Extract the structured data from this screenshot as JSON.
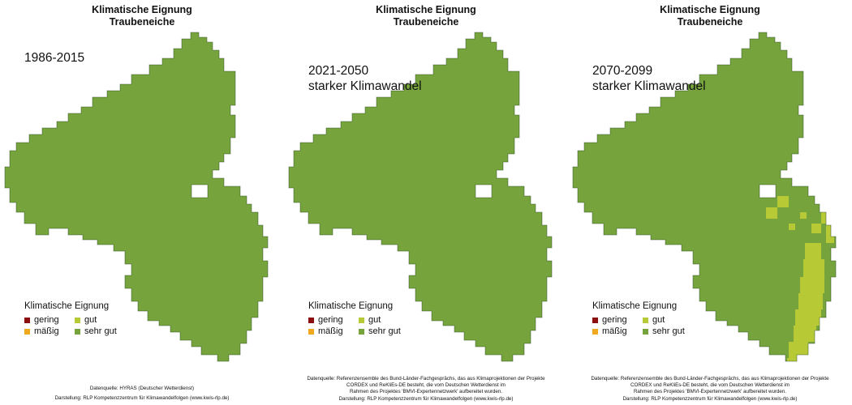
{
  "colors": {
    "sehr_gut": "#76a33c",
    "gut": "#b7c935",
    "maessig": "#f0a81e",
    "gering": "#8b0f0f",
    "outline": "#2f4f2a"
  },
  "panels": [
    {
      "title_line1": "Klimatische Eignung",
      "title_line2": "Traubeneiche",
      "period": "1986-2015",
      "legend": {
        "title": "Klimatische Eignung",
        "items": [
          {
            "label": "gering",
            "color": "#8b0f0f"
          },
          {
            "label": "gut",
            "color": "#b7c935"
          },
          {
            "label": "mäßig",
            "color": "#f0a81e"
          },
          {
            "label": "sehr gut",
            "color": "#76a33c"
          }
        ]
      },
      "source": "Datenquelle: HYRAS (Deutscher Wetterdienst)",
      "credit": "Darstellung: RLP Kompetenzzentrum für Klimawandelfolgen (www.kwis-rlp.de)"
    },
    {
      "title_line1": "Klimatische Eignung",
      "title_line2": "Traubeneiche",
      "period": "2021-2050\nstarker Klimawandel",
      "legend": {
        "title": "Klimatische Eignung",
        "items": [
          {
            "label": "gering",
            "color": "#8b0f0f"
          },
          {
            "label": "gut",
            "color": "#b7c935"
          },
          {
            "label": "mäßig",
            "color": "#f0a81e"
          },
          {
            "label": "sehr gut",
            "color": "#76a33c"
          }
        ]
      },
      "source": "Datenquelle: Referenzensemble des Bund-Länder-Fachgesprächs, das aus Klimaprojektionen der Projekte\nCORDEX und ReKliEs-DE besteht, die vom Deutschen Wetterdienst im\nRahmen des Projektes 'BMVI-Expertennetzwerk' aufbereitet wurden.",
      "credit": "Darstellung: RLP Kompetenzzentrum für Klimawandelfolgen (www.kwis-rlp.de)"
    },
    {
      "title_line1": "Klimatische Eignung",
      "title_line2": "Traubeneiche",
      "period": "2070-2099\nstarker Klimawandel",
      "legend": {
        "title": "Klimatische Eignung",
        "items": [
          {
            "label": "gering",
            "color": "#8b0f0f"
          },
          {
            "label": "gut",
            "color": "#b7c935"
          },
          {
            "label": "mäßig",
            "color": "#f0a81e"
          },
          {
            "label": "sehr gut",
            "color": "#76a33c"
          }
        ]
      },
      "source": "Datenquelle: Referenzensemble des Bund-Länder-Fachgesprächs, das aus Klimaprojektionen der Projekte\nCORDEX und ReKliEs-DE besteht, die vom Deutschen Wetterdienst im\nRahmen des Projektes 'BMVI-Expertennetzwerk' aufbereitet wurden.",
      "credit": "Darstellung: RLP Kompetenzzentrum für Klimawandelfolgen (www.kwis-rlp.de)"
    }
  ]
}
